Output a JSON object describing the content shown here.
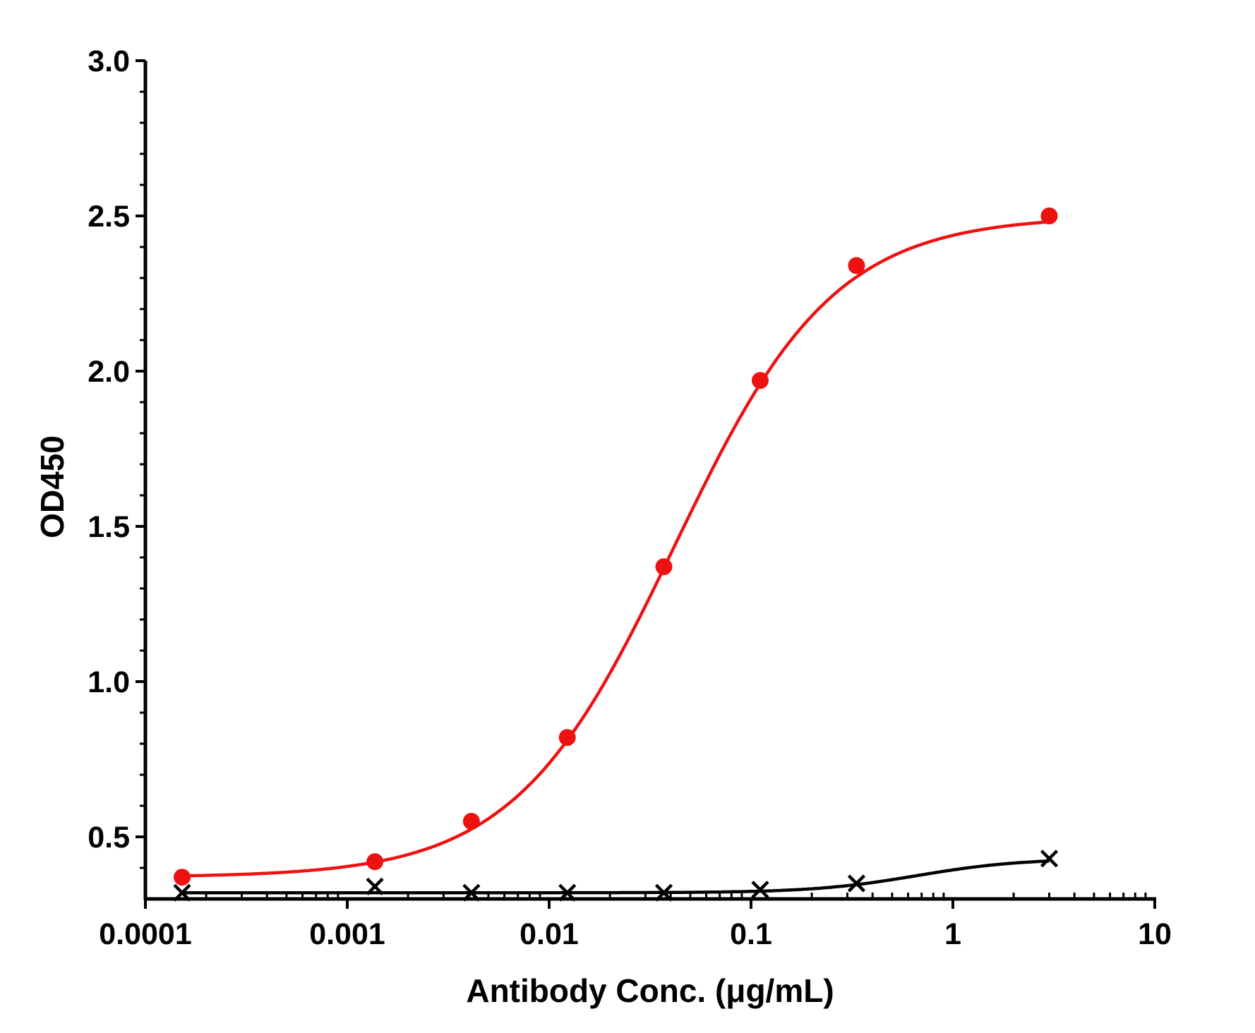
{
  "chart_data": {
    "type": "scatter",
    "xlabel": "Antibody Conc. (μg/mL)",
    "ylabel": "OD450",
    "x_scale": "log",
    "xlim": [
      0.0001,
      10
    ],
    "ylim": [
      0.3,
      3.0
    ],
    "x_ticks": [
      0.0001,
      0.001,
      0.01,
      0.1,
      1,
      10
    ],
    "x_tick_labels": [
      "0.0001",
      "0.001",
      "0.01",
      "0.1",
      "1",
      "10"
    ],
    "y_ticks": [
      0.5,
      1.0,
      1.5,
      2.0,
      2.5,
      3.0
    ],
    "y_tick_labels": [
      "0.5",
      "1.0",
      "1.5",
      "2.0",
      "2.5",
      "3.0"
    ],
    "grid": false,
    "legend": "none",
    "series": [
      {
        "marker": "circle",
        "color": "#ee1111",
        "x": [
          0.000152,
          0.00137,
          0.00412,
          0.0123,
          0.037,
          0.111,
          0.333,
          3.0
        ],
        "y": [
          0.37,
          0.42,
          0.55,
          0.82,
          1.37,
          1.97,
          2.34,
          2.5
        ]
      },
      {
        "marker": "x",
        "color": "#000000",
        "x": [
          0.000152,
          0.00137,
          0.00412,
          0.0123,
          0.037,
          0.111,
          0.333,
          3.0
        ],
        "y": [
          0.32,
          0.34,
          0.32,
          0.32,
          0.32,
          0.33,
          0.35,
          0.43
        ]
      }
    ]
  }
}
